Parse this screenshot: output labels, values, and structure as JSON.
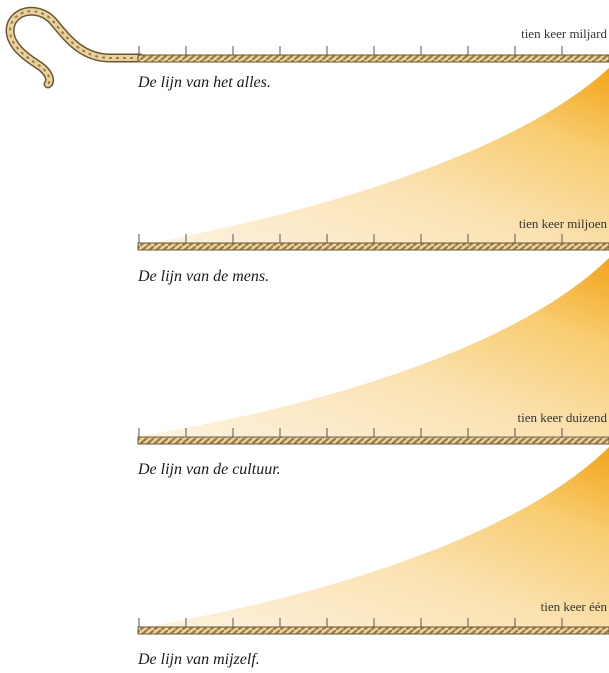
{
  "colors": {
    "rope_light": "#e8d2a0",
    "rope_dark": "#9c7b45",
    "rope_outline": "#6e5530",
    "gradient_strong": "#f3a418",
    "gradient_mid": "#f8cd72",
    "gradient_light": "#fdf3e1",
    "tick": "#555555"
  },
  "icons": {
    "rope_hook": "rope-hook-icon"
  },
  "lines": [
    {
      "scale_label": "tien keer miljard",
      "caption": "De lijn van het alles."
    },
    {
      "scale_label": "tien keer miljoen",
      "caption": "De lijn van de mens."
    },
    {
      "scale_label": "tien keer duizend",
      "caption": "De lijn van de cultuur."
    },
    {
      "scale_label": "tien keer één",
      "caption": "De lijn van mijzelf."
    }
  ]
}
